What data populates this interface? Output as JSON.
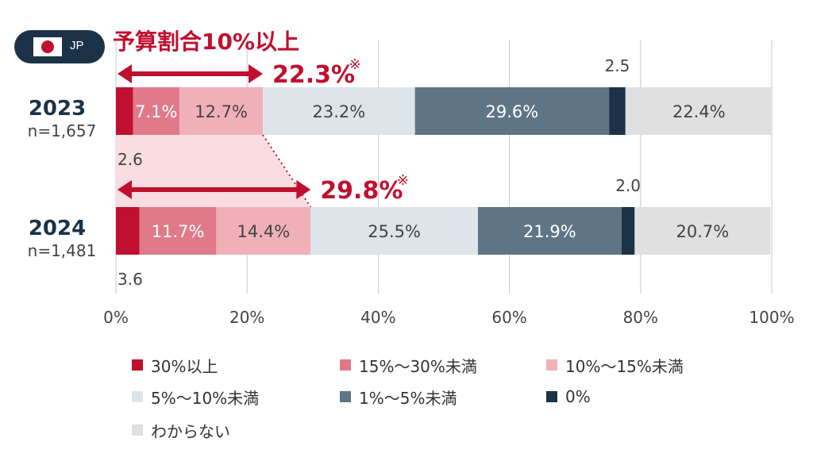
{
  "badge": {
    "region": "JP"
  },
  "annotation": {
    "label": "予算割合10%以上",
    "mark": "※"
  },
  "chart_data": {
    "type": "bar",
    "orientation": "horizontal",
    "stacked": true,
    "xlim": [
      0,
      100
    ],
    "xticks": [
      "0%",
      "20%",
      "40%",
      "60%",
      "80%",
      "100%"
    ],
    "grid": true,
    "legend_position": "bottom",
    "categories": [
      {
        "year": "2023",
        "n": "n=1,657"
      },
      {
        "year": "2024",
        "n": "n=1,481"
      }
    ],
    "series": [
      {
        "name": "30%以上",
        "color": "#c0102f",
        "values": [
          2.6,
          3.6
        ],
        "labels": [
          "2.6",
          "3.6"
        ]
      },
      {
        "name": "15%～30%未満",
        "color": "#e07a8a",
        "values": [
          7.1,
          11.7
        ],
        "labels": [
          "7.1%",
          "11.7%"
        ]
      },
      {
        "name": "10%～15%未満",
        "color": "#f0b0b8",
        "values": [
          12.7,
          14.4
        ],
        "labels": [
          "12.7%",
          "14.4%"
        ]
      },
      {
        "name": "5%～10%未満",
        "color": "#dde4ea",
        "values": [
          23.2,
          25.5
        ],
        "labels": [
          "23.2%",
          "25.5%"
        ]
      },
      {
        "name": "1%～5%未満",
        "color": "#5e7586",
        "values": [
          29.6,
          21.9
        ],
        "labels": [
          "29.6%",
          "21.9%"
        ]
      },
      {
        "name": "0%",
        "color": "#1c3347",
        "values": [
          2.5,
          2.0
        ],
        "labels": [
          "2.5",
          "2.0"
        ]
      },
      {
        "name": "わからない",
        "color": "#e0e0e0",
        "values": [
          22.4,
          20.7
        ],
        "labels": [
          "22.4%",
          "20.7%"
        ]
      }
    ],
    "totals_10pct_plus": [
      "22.3%",
      "29.8%"
    ]
  }
}
